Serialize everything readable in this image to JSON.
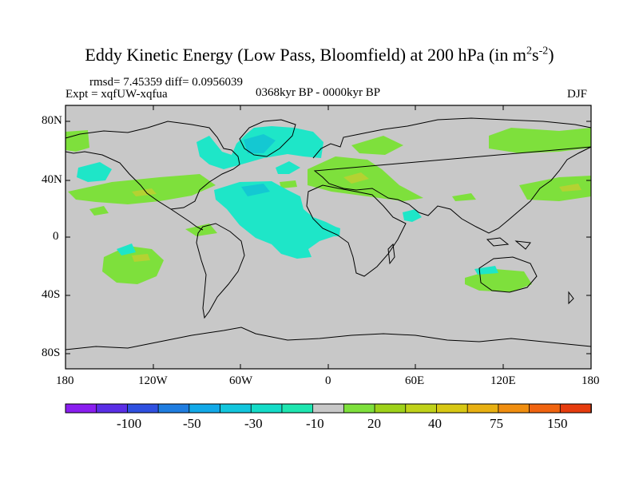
{
  "title": {
    "main": "Eddy Kinetic Energy (Low Pass, Bloomfield) at 200 hPa (in m",
    "sup1": "2",
    "mid": "s",
    "sup2": "-2",
    "end": ")"
  },
  "stats": "rmsd= 7.45359 diff= 0.0956039",
  "experiment": "Expt = xqfUW-xqfua",
  "period": "0368kyr BP - 0000kyr BP",
  "season": "DJF",
  "y_ticks": [
    "80N",
    "40N",
    "0",
    "40S",
    "80S"
  ],
  "x_ticks": [
    "180",
    "120W",
    "60W",
    "0",
    "60E",
    "120E",
    "180"
  ],
  "colorbar": {
    "labels": [
      "-100",
      "-50",
      "-30",
      "-10",
      "20",
      "40",
      "75",
      "150"
    ],
    "colors": [
      "#8a1ef0",
      "#5a2ee6",
      "#2f50e0",
      "#1f7de0",
      "#12a9e8",
      "#12c6dd",
      "#14dcc8",
      "#1ee6b0",
      "#c8c8c8",
      "#7ee03c",
      "#9ed21a",
      "#c0d21a",
      "#d8c814",
      "#e8b012",
      "#f08e10",
      "#f06410",
      "#e63c0e"
    ]
  },
  "map_colors": {
    "background": "#c8c8c8",
    "positive_light": "#7ee03c",
    "positive_strong": "#b4d232",
    "negative_light": "#1ee6c8",
    "negative_strong": "#14c8d2"
  }
}
